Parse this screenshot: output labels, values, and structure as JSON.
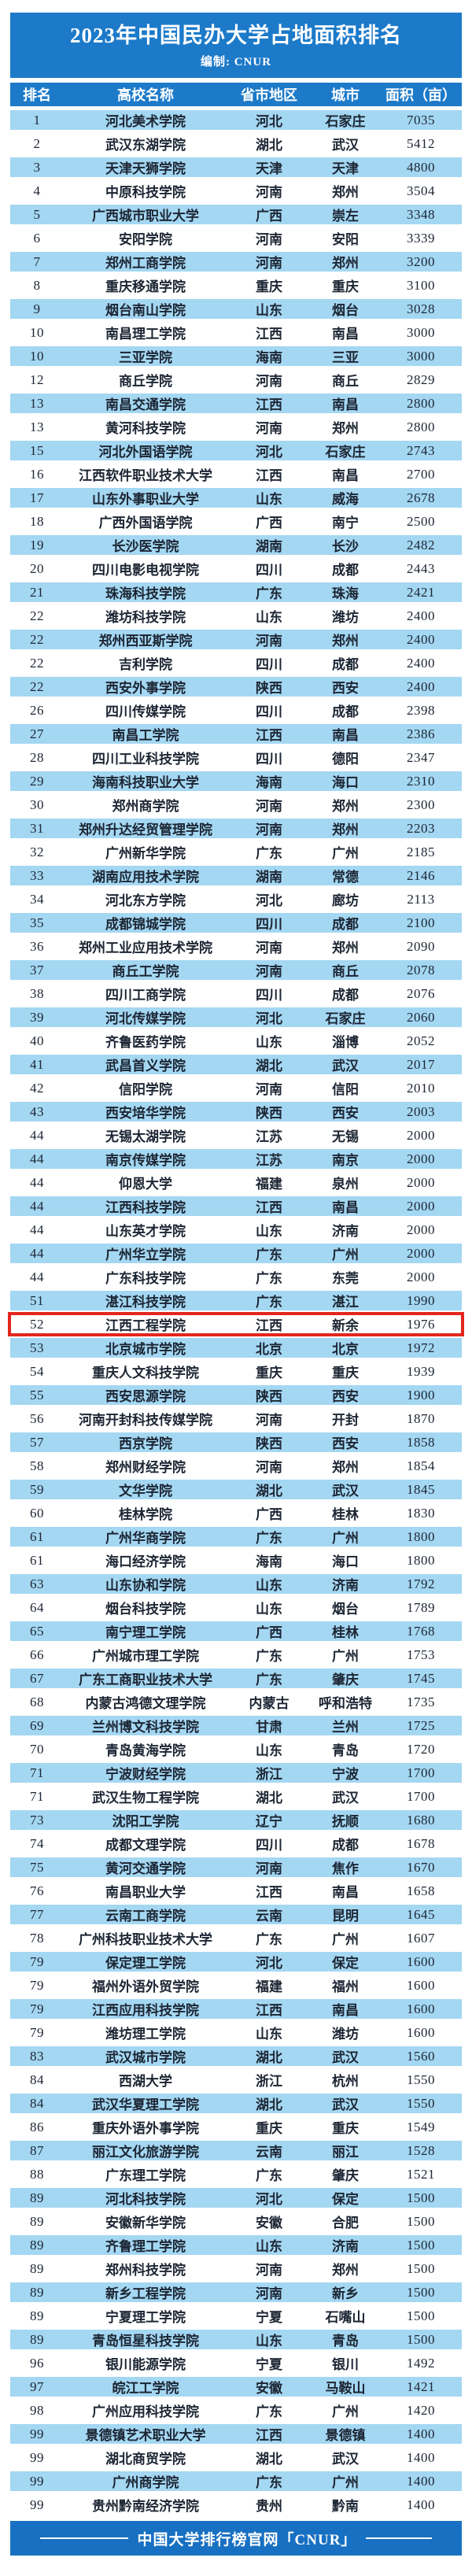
{
  "header": {
    "title": "2023年中国民办大学占地面积排名",
    "subtitle": "编制: CNUR"
  },
  "colors": {
    "band_blue": "#1c7ac9",
    "row_alt_blue": "#a4d7f2",
    "footer_blue": "#1870c2",
    "highlight_red": "#e3261d",
    "text_dark": "#1c2533",
    "text_white": "#ffffff"
  },
  "footer": {
    "text": "中国大学排行榜官网「CNUR」"
  },
  "chart_data": {
    "type": "table",
    "title": "2023年中国民办大学占地面积排名",
    "columns": [
      "排名",
      "高校名称",
      "省市地区",
      "城市",
      "面积（亩）"
    ],
    "highlight_row_index": 52,
    "highlight_note": "row outlined in red",
    "rows": [
      [
        1,
        "河北美术学院",
        "河北",
        "石家庄",
        7035
      ],
      [
        2,
        "武汉东湖学院",
        "湖北",
        "武汉",
        5412
      ],
      [
        3,
        "天津天狮学院",
        "天津",
        "天津",
        4800
      ],
      [
        4,
        "中原科技学院",
        "河南",
        "郑州",
        3504
      ],
      [
        5,
        "广西城市职业大学",
        "广西",
        "崇左",
        3348
      ],
      [
        6,
        "安阳学院",
        "河南",
        "安阳",
        3339
      ],
      [
        7,
        "郑州工商学院",
        "河南",
        "郑州",
        3200
      ],
      [
        8,
        "重庆移通学院",
        "重庆",
        "重庆",
        3100
      ],
      [
        9,
        "烟台南山学院",
        "山东",
        "烟台",
        3028
      ],
      [
        10,
        "南昌理工学院",
        "江西",
        "南昌",
        3000
      ],
      [
        10,
        "三亚学院",
        "海南",
        "三亚",
        3000
      ],
      [
        12,
        "商丘学院",
        "河南",
        "商丘",
        2829
      ],
      [
        13,
        "南昌交通学院",
        "江西",
        "南昌",
        2800
      ],
      [
        13,
        "黄河科技学院",
        "河南",
        "郑州",
        2800
      ],
      [
        15,
        "河北外国语学院",
        "河北",
        "石家庄",
        2743
      ],
      [
        16,
        "江西软件职业技术大学",
        "江西",
        "南昌",
        2700
      ],
      [
        17,
        "山东外事职业大学",
        "山东",
        "威海",
        2678
      ],
      [
        18,
        "广西外国语学院",
        "广西",
        "南宁",
        2500
      ],
      [
        19,
        "长沙医学院",
        "湖南",
        "长沙",
        2482
      ],
      [
        20,
        "四川电影电视学院",
        "四川",
        "成都",
        2443
      ],
      [
        21,
        "珠海科技学院",
        "广东",
        "珠海",
        2421
      ],
      [
        22,
        "潍坊科技学院",
        "山东",
        "潍坊",
        2400
      ],
      [
        22,
        "郑州西亚斯学院",
        "河南",
        "郑州",
        2400
      ],
      [
        22,
        "吉利学院",
        "四川",
        "成都",
        2400
      ],
      [
        22,
        "西安外事学院",
        "陕西",
        "西安",
        2400
      ],
      [
        26,
        "四川传媒学院",
        "四川",
        "成都",
        2398
      ],
      [
        27,
        "南昌工学院",
        "江西",
        "南昌",
        2386
      ],
      [
        28,
        "四川工业科技学院",
        "四川",
        "德阳",
        2347
      ],
      [
        29,
        "海南科技职业大学",
        "海南",
        "海口",
        2310
      ],
      [
        30,
        "郑州商学院",
        "河南",
        "郑州",
        2300
      ],
      [
        31,
        "郑州升达经贸管理学院",
        "河南",
        "郑州",
        2203
      ],
      [
        32,
        "广州新华学院",
        "广东",
        "广州",
        2185
      ],
      [
        33,
        "湖南应用技术学院",
        "湖南",
        "常德",
        2146
      ],
      [
        34,
        "河北东方学院",
        "河北",
        "廊坊",
        2113
      ],
      [
        35,
        "成都锦城学院",
        "四川",
        "成都",
        2100
      ],
      [
        36,
        "郑州工业应用技术学院",
        "河南",
        "郑州",
        2090
      ],
      [
        37,
        "商丘工学院",
        "河南",
        "商丘",
        2078
      ],
      [
        38,
        "四川工商学院",
        "四川",
        "成都",
        2076
      ],
      [
        39,
        "河北传媒学院",
        "河北",
        "石家庄",
        2060
      ],
      [
        40,
        "齐鲁医药学院",
        "山东",
        "淄博",
        2052
      ],
      [
        41,
        "武昌首义学院",
        "湖北",
        "武汉",
        2017
      ],
      [
        42,
        "信阳学院",
        "河南",
        "信阳",
        2010
      ],
      [
        43,
        "西安培华学院",
        "陕西",
        "西安",
        2003
      ],
      [
        44,
        "无锡太湖学院",
        "江苏",
        "无锡",
        2000
      ],
      [
        44,
        "南京传媒学院",
        "江苏",
        "南京",
        2000
      ],
      [
        44,
        "仰恩大学",
        "福建",
        "泉州",
        2000
      ],
      [
        44,
        "江西科技学院",
        "江西",
        "南昌",
        2000
      ],
      [
        44,
        "山东英才学院",
        "山东",
        "济南",
        2000
      ],
      [
        44,
        "广州华立学院",
        "广东",
        "广州",
        2000
      ],
      [
        44,
        "广东科技学院",
        "广东",
        "东莞",
        2000
      ],
      [
        51,
        "湛江科技学院",
        "广东",
        "湛江",
        1990
      ],
      [
        52,
        "江西工程学院",
        "江西",
        "新余",
        1976
      ],
      [
        53,
        "北京城市学院",
        "北京",
        "北京",
        1972
      ],
      [
        54,
        "重庆人文科技学院",
        "重庆",
        "重庆",
        1939
      ],
      [
        55,
        "西安思源学院",
        "陕西",
        "西安",
        1900
      ],
      [
        56,
        "河南开封科技传媒学院",
        "河南",
        "开封",
        1870
      ],
      [
        57,
        "西京学院",
        "陕西",
        "西安",
        1858
      ],
      [
        58,
        "郑州财经学院",
        "河南",
        "郑州",
        1854
      ],
      [
        59,
        "文华学院",
        "湖北",
        "武汉",
        1845
      ],
      [
        60,
        "桂林学院",
        "广西",
        "桂林",
        1830
      ],
      [
        61,
        "广州华商学院",
        "广东",
        "广州",
        1800
      ],
      [
        61,
        "海口经济学院",
        "海南",
        "海口",
        1800
      ],
      [
        63,
        "山东协和学院",
        "山东",
        "济南",
        1792
      ],
      [
        64,
        "烟台科技学院",
        "山东",
        "烟台",
        1789
      ],
      [
        65,
        "南宁理工学院",
        "广西",
        "桂林",
        1768
      ],
      [
        66,
        "广州城市理工学院",
        "广东",
        "广州",
        1753
      ],
      [
        67,
        "广东工商职业技术大学",
        "广东",
        "肇庆",
        1745
      ],
      [
        68,
        "内蒙古鸿德文理学院",
        "内蒙古",
        "呼和浩特",
        1735
      ],
      [
        69,
        "兰州博文科技学院",
        "甘肃",
        "兰州",
        1725
      ],
      [
        70,
        "青岛黄海学院",
        "山东",
        "青岛",
        1720
      ],
      [
        71,
        "宁波财经学院",
        "浙江",
        "宁波",
        1700
      ],
      [
        71,
        "武汉生物工程学院",
        "湖北",
        "武汉",
        1700
      ],
      [
        73,
        "沈阳工学院",
        "辽宁",
        "抚顺",
        1680
      ],
      [
        74,
        "成都文理学院",
        "四川",
        "成都",
        1678
      ],
      [
        75,
        "黄河交通学院",
        "河南",
        "焦作",
        1670
      ],
      [
        76,
        "南昌职业大学",
        "江西",
        "南昌",
        1658
      ],
      [
        77,
        "云南工商学院",
        "云南",
        "昆明",
        1645
      ],
      [
        78,
        "广州科技职业技术大学",
        "广东",
        "广州",
        1607
      ],
      [
        79,
        "保定理工学院",
        "河北",
        "保定",
        1600
      ],
      [
        79,
        "福州外语外贸学院",
        "福建",
        "福州",
        1600
      ],
      [
        79,
        "江西应用科技学院",
        "江西",
        "南昌",
        1600
      ],
      [
        79,
        "潍坊理工学院",
        "山东",
        "潍坊",
        1600
      ],
      [
        83,
        "武汉城市学院",
        "湖北",
        "武汉",
        1560
      ],
      [
        84,
        "西湖大学",
        "浙江",
        "杭州",
        1550
      ],
      [
        84,
        "武汉华夏理工学院",
        "湖北",
        "武汉",
        1550
      ],
      [
        86,
        "重庆外语外事学院",
        "重庆",
        "重庆",
        1549
      ],
      [
        87,
        "丽江文化旅游学院",
        "云南",
        "丽江",
        1528
      ],
      [
        88,
        "广东理工学院",
        "广东",
        "肇庆",
        1521
      ],
      [
        89,
        "河北科技学院",
        "河北",
        "保定",
        1500
      ],
      [
        89,
        "安徽新华学院",
        "安徽",
        "合肥",
        1500
      ],
      [
        89,
        "齐鲁理工学院",
        "山东",
        "济南",
        1500
      ],
      [
        89,
        "郑州科技学院",
        "河南",
        "郑州",
        1500
      ],
      [
        89,
        "新乡工程学院",
        "河南",
        "新乡",
        1500
      ],
      [
        89,
        "宁夏理工学院",
        "宁夏",
        "石嘴山",
        1500
      ],
      [
        89,
        "青岛恒星科技学院",
        "山东",
        "青岛",
        1500
      ],
      [
        96,
        "银川能源学院",
        "宁夏",
        "银川",
        1492
      ],
      [
        97,
        "皖江工学院",
        "安徽",
        "马鞍山",
        1421
      ],
      [
        98,
        "广州应用科技学院",
        "广东",
        "广州",
        1420
      ],
      [
        99,
        "景德镇艺术职业大学",
        "江西",
        "景德镇",
        1400
      ],
      [
        99,
        "湖北商贸学院",
        "湖北",
        "武汉",
        1400
      ],
      [
        99,
        "广州商学院",
        "广东",
        "广州",
        1400
      ],
      [
        99,
        "贵州黔南经济学院",
        "贵州",
        "黔南",
        1400
      ]
    ]
  }
}
